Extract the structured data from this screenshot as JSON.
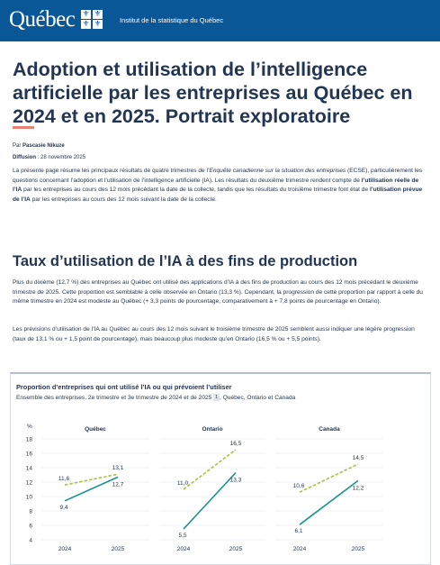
{
  "header": {
    "logo_text": "Québec",
    "flag_glyph": "⚜",
    "institute": "Institut de la statistique du Québec"
  },
  "article": {
    "title": "Adoption et utilisation de l’intelligence artificielle par les entreprises au Québec en 2024 et en 2025. Portrait exploratoire",
    "author_label": "Par",
    "author": "Pascasie Nikuze",
    "diffusion_label": "Diffusion",
    "diffusion_date": "28 novembre 2025",
    "intro": {
      "p1": "La présente page résume les principaux résultats de quatre trimestres de l’",
      "p1_em": "Enquête canadienne sur la situation des entreprises",
      "p2": " (ECSE), particulièrement les questions concernant l’adoption et l’utilisation de l’intelligence artificielle (IA). Les résultats du deuxième trimestre rendent compte de ",
      "p2_b": "l’utilisation réelle de l’IA",
      "p3": " par les entreprises au cours des 12 mois précédant la date de la collecte, tandis que les résultats du troisième trimestre font état de ",
      "p3_b": "l’utilisation prévue de l’IA",
      "p4": " par les entreprises au cours des 12 mois suivant la date de la collecte."
    },
    "section_title": "Taux d’utilisation de l’IA à des fins de production",
    "section_p1": "Plus du dixième (12,7 %) des entreprises au Québec ont utilisé des applications d’IA à des fins de production au cours des 12 mois précédant le deuxième trimestre de 2025. Cette proportion est semblable à celle observée en Ontario (13,3 %). Cependant, la progression de cette proportion par rapport à celle du même trimestre en 2024 est modeste au Québec (+ 3,3 points de pourcentage, comparativement à + 7,8 points de pourcentage en Ontario).",
    "section_p2": "Les prévisions d’utilisation de l’IA au Québec au cours des 12 mois suivant le troisième trimestre de 2025 semblent aussi indiquer une légère progression (taux de 13,1 % ou + 1,5 point de pourcentage), mais beaucoup plus modeste qu’en Ontario (16,5 % ou + 5,5 points)."
  },
  "chart_data": {
    "type": "line",
    "title": "Proportion d’entreprises qui ont utilisé l’IA ou qui prévoient l’utiliser",
    "subtitle": "Ensemble des entreprises, 2e trimestre et 3e trimestre de 2024 et de 2025",
    "subtitle_note": "1",
    "subtitle_suffix": ", Québec, Ontario et Canada",
    "ylabel": "%",
    "ylim": [
      4,
      18
    ],
    "yticks": [
      4,
      6,
      8,
      10,
      12,
      14,
      16,
      18
    ],
    "x": [
      "2024",
      "2025"
    ],
    "colors": {
      "utilisation": "#15928c",
      "prevision": "#a7c33c"
    },
    "panels": [
      {
        "name": "Québec",
        "series": [
          {
            "style": "dashed",
            "values": [
              11.6,
              13.1
            ],
            "labels": [
              "11,6",
              "13,1"
            ]
          },
          {
            "style": "solid",
            "values": [
              9.4,
              12.7
            ],
            "labels": [
              "9,4",
              "12,7"
            ]
          }
        ]
      },
      {
        "name": "Ontario",
        "series": [
          {
            "style": "dashed",
            "values": [
              11.0,
              16.5
            ],
            "labels": [
              "11,0",
              "16,5"
            ]
          },
          {
            "style": "solid",
            "values": [
              5.5,
              13.3
            ],
            "labels": [
              "5,5",
              "13,3"
            ]
          }
        ]
      },
      {
        "name": "Canada",
        "series": [
          {
            "style": "dashed",
            "values": [
              10.6,
              14.5
            ],
            "labels": [
              "10,6",
              "14,5"
            ]
          },
          {
            "style": "solid",
            "values": [
              6.1,
              12.2
            ],
            "labels": [
              "6,1",
              "12,2"
            ]
          }
        ]
      }
    ]
  }
}
